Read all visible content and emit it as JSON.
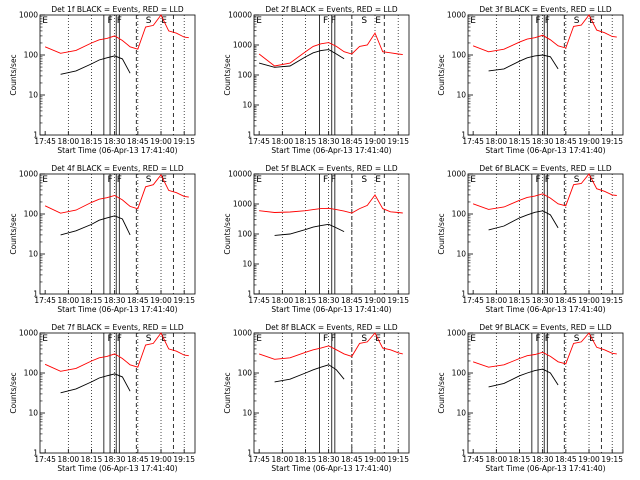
{
  "figure": {
    "ylabel": "Counts/sec",
    "xlabel": "Start Time (06-Apr-13 17:41:40)",
    "x_tick_labels": [
      "17:45",
      "18:00",
      "18:15",
      "18:30",
      "18:45",
      "19:00",
      "19:15"
    ],
    "y_tick_labels": [
      "1",
      "10",
      "100",
      "1000"
    ],
    "colors": {
      "events": "#000000",
      "lld": "#ff0000",
      "axes": "#000000"
    }
  },
  "chart_data": [
    {
      "type": "line",
      "title": "Det 1f BLACK = Events, RED = LLD",
      "xlabel": "Start Time (06-Apr-13 17:41:40)",
      "ylabel": "Counts/sec",
      "xlim": [
        "17:41:40",
        "19:22"
      ],
      "ylim": [
        1,
        1000
      ],
      "yscale": "log",
      "x": [
        "17:45",
        "17:55",
        "18:05",
        "18:15",
        "18:20",
        "18:25",
        "18:30",
        "18:35",
        "18:40",
        "18:45",
        "18:50",
        "18:55",
        "19:00",
        "19:05",
        "19:10",
        "19:15",
        "19:18"
      ],
      "series": [
        {
          "name": "Events",
          "values": [
            null,
            33,
            40,
            60,
            75,
            85,
            95,
            80,
            35,
            null,
            null,
            null,
            null,
            null,
            null,
            null,
            null
          ]
        },
        {
          "name": "LLD",
          "values": [
            160,
            110,
            130,
            200,
            240,
            260,
            300,
            230,
            160,
            140,
            500,
            550,
            1000,
            400,
            350,
            280,
            270
          ]
        }
      ],
      "vlines_solid": [
        "18:23",
        "18:27",
        "18:31",
        "18:33"
      ],
      "vlines_dashed": [
        "18:44",
        "19:08"
      ],
      "vlines_dotted": [
        "18:00",
        "18:15",
        "18:30",
        "18:45",
        "19:00",
        "19:15"
      ],
      "annotations": [
        {
          "text": "E",
          "x": "17:45"
        },
        {
          "text": "F",
          "x": "18:27"
        },
        {
          "text": "F",
          "x": "18:33"
        },
        {
          "text": "S",
          "x": "18:52"
        },
        {
          "text": "E",
          "x": "19:02"
        }
      ]
    },
    {
      "type": "line",
      "title": "Det 2f BLACK = Events, RED = LLD",
      "xlabel": "Start Time (06-Apr-13 17:41:40)",
      "ylabel": "Counts/sec",
      "xlim": [
        "17:41:40",
        "19:22"
      ],
      "ylim": [
        1,
        10000
      ],
      "yscale": "log",
      "x": [
        "17:45",
        "17:55",
        "18:05",
        "18:15",
        "18:20",
        "18:25",
        "18:30",
        "18:35",
        "18:40",
        "18:45",
        "18:50",
        "18:55",
        "19:00",
        "19:05",
        "19:10",
        "19:15",
        "19:18"
      ],
      "series": [
        {
          "name": "Events",
          "values": [
            250,
            180,
            200,
            400,
            550,
            650,
            700,
            500,
            350,
            null,
            null,
            null,
            null,
            null,
            null,
            null,
            null
          ]
        },
        {
          "name": "LLD",
          "values": [
            500,
            200,
            250,
            600,
            900,
            1100,
            1200,
            900,
            600,
            500,
            900,
            1000,
            2500,
            600,
            550,
            500,
            480
          ]
        }
      ],
      "vlines_solid": [
        "18:24",
        "18:32",
        "18:34"
      ],
      "vlines_dashed": [
        "18:45",
        "19:06"
      ],
      "vlines_dotted": [
        "18:00",
        "18:15",
        "18:30",
        "18:45",
        "19:00",
        "19:15"
      ],
      "annotations": [
        {
          "text": "E",
          "x": "17:45"
        },
        {
          "text": "F",
          "x": "18:28"
        },
        {
          "text": "F",
          "x": "18:33"
        },
        {
          "text": "S",
          "x": "18:53"
        },
        {
          "text": "E",
          "x": "19:02"
        }
      ]
    },
    {
      "type": "line",
      "title": "Det 3f BLACK = Events, RED = LLD",
      "xlabel": "Start Time (06-Apr-13 17:41:40)",
      "ylabel": "Counts/sec",
      "xlim": [
        "17:41:40",
        "19:22"
      ],
      "ylim": [
        1,
        1000
      ],
      "yscale": "log",
      "x": [
        "17:45",
        "17:55",
        "18:05",
        "18:15",
        "18:20",
        "18:25",
        "18:30",
        "18:35",
        "18:40",
        "18:45",
        "18:50",
        "18:55",
        "19:00",
        "19:05",
        "19:10",
        "19:15",
        "19:18"
      ],
      "series": [
        {
          "name": "Events",
          "values": [
            null,
            40,
            45,
            70,
            85,
            95,
            100,
            90,
            45,
            null,
            null,
            null,
            null,
            null,
            null,
            null,
            null
          ]
        },
        {
          "name": "LLD",
          "values": [
            170,
            120,
            140,
            210,
            250,
            270,
            310,
            240,
            170,
            150,
            520,
            560,
            1000,
            420,
            360,
            290,
            280
          ]
        }
      ],
      "vlines_solid": [
        "18:23",
        "18:27",
        "18:31",
        "18:33"
      ],
      "vlines_dashed": [
        "18:44",
        "19:08"
      ],
      "vlines_dotted": [
        "18:00",
        "18:15",
        "18:30",
        "18:45",
        "19:00",
        "19:15"
      ],
      "annotations": [
        {
          "text": "E",
          "x": "17:45"
        },
        {
          "text": "F",
          "x": "18:27"
        },
        {
          "text": "F",
          "x": "18:33"
        },
        {
          "text": "S",
          "x": "18:52"
        },
        {
          "text": "E",
          "x": "19:02"
        }
      ]
    },
    {
      "type": "line",
      "title": "Det 4f BLACK = Events, RED = LLD",
      "xlabel": "Start Time (06-Apr-13 17:41:40)",
      "ylabel": "Counts/sec",
      "xlim": [
        "17:41:40",
        "19:22"
      ],
      "ylim": [
        1,
        1000
      ],
      "yscale": "log",
      "x": [
        "17:45",
        "17:55",
        "18:05",
        "18:15",
        "18:20",
        "18:25",
        "18:30",
        "18:35",
        "18:40",
        "18:45",
        "18:50",
        "18:55",
        "19:00",
        "19:05",
        "19:10",
        "19:15",
        "19:18"
      ],
      "series": [
        {
          "name": "Events",
          "values": [
            null,
            30,
            38,
            55,
            70,
            80,
            90,
            75,
            30,
            null,
            null,
            null,
            null,
            null,
            null,
            null,
            null
          ]
        },
        {
          "name": "LLD",
          "values": [
            160,
            105,
            125,
            195,
            235,
            255,
            290,
            225,
            155,
            135,
            480,
            540,
            950,
            390,
            340,
            275,
            265
          ]
        }
      ],
      "vlines_solid": [
        "18:23",
        "18:27",
        "18:31",
        "18:33"
      ],
      "vlines_dashed": [
        "18:44",
        "19:08"
      ],
      "vlines_dotted": [
        "18:00",
        "18:15",
        "18:30",
        "18:45",
        "19:00",
        "19:15"
      ],
      "annotations": [
        {
          "text": "E",
          "x": "17:45"
        },
        {
          "text": "F",
          "x": "18:27"
        },
        {
          "text": "F",
          "x": "18:33"
        },
        {
          "text": "S",
          "x": "18:52"
        },
        {
          "text": "E",
          "x": "19:02"
        }
      ]
    },
    {
      "type": "line",
      "title": "Det 5f BLACK = Events, RED = LLD",
      "xlabel": "Start Time (06-Apr-13 17:41:40)",
      "ylabel": "Counts/sec",
      "xlim": [
        "17:41:40",
        "19:22"
      ],
      "ylim": [
        1,
        10000
      ],
      "yscale": "log",
      "x": [
        "17:45",
        "17:55",
        "18:05",
        "18:15",
        "18:20",
        "18:25",
        "18:30",
        "18:35",
        "18:40",
        "18:45",
        "18:50",
        "18:55",
        "19:00",
        "19:05",
        "19:10",
        "19:15",
        "19:18"
      ],
      "series": [
        {
          "name": "Events",
          "values": [
            null,
            90,
            100,
            140,
            170,
            190,
            210,
            160,
            120,
            null,
            null,
            null,
            null,
            null,
            null,
            null,
            null
          ]
        },
        {
          "name": "LLD",
          "values": [
            600,
            520,
            540,
            600,
            650,
            700,
            720,
            650,
            580,
            500,
            700,
            900,
            2000,
            700,
            550,
            520,
            500
          ]
        }
      ],
      "vlines_solid": [
        "18:24",
        "18:32",
        "18:34"
      ],
      "vlines_dashed": [
        "18:45",
        "19:06"
      ],
      "vlines_dotted": [
        "18:00",
        "18:15",
        "18:30",
        "18:45",
        "19:00",
        "19:15"
      ],
      "annotations": [
        {
          "text": "E",
          "x": "17:45"
        },
        {
          "text": "F",
          "x": "18:28"
        },
        {
          "text": "F",
          "x": "18:33"
        },
        {
          "text": "S",
          "x": "18:53"
        },
        {
          "text": "E",
          "x": "19:02"
        }
      ]
    },
    {
      "type": "line",
      "title": "Det 6f BLACK = Events, RED = LLD",
      "xlabel": "Start Time (06-Apr-13 17:41:40)",
      "ylabel": "Counts/sec",
      "xlim": [
        "17:41:40",
        "19:22"
      ],
      "ylim": [
        1,
        1000
      ],
      "yscale": "log",
      "x": [
        "17:45",
        "17:55",
        "18:05",
        "18:15",
        "18:20",
        "18:25",
        "18:30",
        "18:35",
        "18:40",
        "18:45",
        "18:50",
        "18:55",
        "19:00",
        "19:05",
        "19:10",
        "19:15",
        "19:18"
      ],
      "series": [
        {
          "name": "Events",
          "values": [
            null,
            40,
            50,
            80,
            95,
            110,
            120,
            95,
            45,
            null,
            null,
            null,
            null,
            null,
            null,
            null,
            null
          ]
        },
        {
          "name": "LLD",
          "values": [
            180,
            130,
            150,
            220,
            260,
            280,
            320,
            250,
            180,
            160,
            540,
            580,
            1000,
            430,
            370,
            300,
            290
          ]
        }
      ],
      "vlines_solid": [
        "18:23",
        "18:27",
        "18:31",
        "18:33"
      ],
      "vlines_dashed": [
        "18:44",
        "19:08"
      ],
      "vlines_dotted": [
        "18:00",
        "18:15",
        "18:30",
        "18:45",
        "19:00",
        "19:15"
      ],
      "annotations": [
        {
          "text": "E",
          "x": "17:45"
        },
        {
          "text": "F",
          "x": "18:27"
        },
        {
          "text": "F",
          "x": "18:33"
        },
        {
          "text": "S",
          "x": "18:52"
        },
        {
          "text": "E",
          "x": "19:02"
        }
      ]
    },
    {
      "type": "line",
      "title": "Det 7f BLACK = Events, RED = LLD",
      "xlabel": "Start Time (06-Apr-13 17:41:40)",
      "ylabel": "Counts/sec",
      "xlim": [
        "17:41:40",
        "19:22"
      ],
      "ylim": [
        1,
        1000
      ],
      "yscale": "log",
      "x": [
        "17:45",
        "17:55",
        "18:05",
        "18:15",
        "18:20",
        "18:25",
        "18:30",
        "18:35",
        "18:40",
        "18:45",
        "18:50",
        "18:55",
        "19:00",
        "19:05",
        "19:10",
        "19:15",
        "19:18"
      ],
      "series": [
        {
          "name": "Events",
          "values": [
            null,
            32,
            40,
            60,
            75,
            85,
            95,
            80,
            35,
            null,
            null,
            null,
            null,
            null,
            null,
            null,
            null
          ]
        },
        {
          "name": "LLD",
          "values": [
            165,
            110,
            130,
            200,
            240,
            260,
            300,
            230,
            160,
            140,
            500,
            550,
            1000,
            400,
            350,
            280,
            270
          ]
        }
      ],
      "vlines_solid": [
        "18:23",
        "18:27",
        "18:31",
        "18:33"
      ],
      "vlines_dashed": [
        "18:44",
        "19:08"
      ],
      "vlines_dotted": [
        "18:00",
        "18:15",
        "18:30",
        "18:45",
        "19:00",
        "19:15"
      ],
      "annotations": [
        {
          "text": "E",
          "x": "17:45"
        },
        {
          "text": "F",
          "x": "18:27"
        },
        {
          "text": "F",
          "x": "18:33"
        },
        {
          "text": "S",
          "x": "18:52"
        },
        {
          "text": "E",
          "x": "19:02"
        }
      ]
    },
    {
      "type": "line",
      "title": "Det 8f BLACK = Events, RED = LLD",
      "xlabel": "Start Time (06-Apr-13 17:41:40)",
      "ylabel": "Counts/sec",
      "xlim": [
        "17:41:40",
        "19:22"
      ],
      "ylim": [
        1,
        1000
      ],
      "yscale": "log",
      "x": [
        "17:45",
        "17:55",
        "18:05",
        "18:15",
        "18:20",
        "18:25",
        "18:30",
        "18:35",
        "18:40",
        "18:45",
        "18:50",
        "18:55",
        "19:00",
        "19:05",
        "19:10",
        "19:15",
        "19:18"
      ],
      "series": [
        {
          "name": "Events",
          "values": [
            null,
            60,
            70,
            100,
            120,
            140,
            160,
            120,
            70,
            null,
            null,
            null,
            null,
            null,
            null,
            null,
            null
          ]
        },
        {
          "name": "LLD",
          "values": [
            300,
            220,
            240,
            330,
            380,
            420,
            480,
            380,
            300,
            260,
            550,
            600,
            1000,
            420,
            380,
            320,
            300
          ]
        }
      ],
      "vlines_solid": [
        "18:24",
        "18:32",
        "18:34"
      ],
      "vlines_dashed": [
        "18:45",
        "19:06"
      ],
      "vlines_dotted": [
        "18:00",
        "18:15",
        "18:30",
        "18:45",
        "19:00",
        "19:15"
      ],
      "annotations": [
        {
          "text": "E",
          "x": "17:45"
        },
        {
          "text": "F",
          "x": "18:28"
        },
        {
          "text": "F",
          "x": "18:33"
        },
        {
          "text": "S",
          "x": "18:53"
        },
        {
          "text": "E",
          "x": "19:02"
        }
      ]
    },
    {
      "type": "line",
      "title": "Det 9f BLACK = Events, RED = LLD",
      "xlabel": "Start Time (06-Apr-13 17:41:40)",
      "ylabel": "Counts/sec",
      "xlim": [
        "17:41:40",
        "19:22"
      ],
      "ylim": [
        1,
        1000
      ],
      "yscale": "log",
      "x": [
        "17:45",
        "17:55",
        "18:05",
        "18:15",
        "18:20",
        "18:25",
        "18:30",
        "18:35",
        "18:40",
        "18:45",
        "18:50",
        "18:55",
        "19:00",
        "19:05",
        "19:10",
        "19:15",
        "19:18"
      ],
      "series": [
        {
          "name": "Events",
          "values": [
            null,
            45,
            55,
            85,
            100,
            115,
            125,
            100,
            50,
            null,
            null,
            null,
            null,
            null,
            null,
            null,
            null
          ]
        },
        {
          "name": "LLD",
          "values": [
            190,
            140,
            160,
            230,
            270,
            290,
            330,
            260,
            190,
            170,
            550,
            600,
            1000,
            440,
            380,
            310,
            300
          ]
        }
      ],
      "vlines_solid": [
        "18:23",
        "18:27",
        "18:31",
        "18:33"
      ],
      "vlines_dashed": [
        "18:44",
        "19:08"
      ],
      "vlines_dotted": [
        "18:00",
        "18:15",
        "18:30",
        "18:45",
        "19:00",
        "19:15"
      ],
      "annotations": [
        {
          "text": "E",
          "x": "17:45"
        },
        {
          "text": "F",
          "x": "18:27"
        },
        {
          "text": "F",
          "x": "18:33"
        },
        {
          "text": "S",
          "x": "18:52"
        },
        {
          "text": "E",
          "x": "19:02"
        }
      ]
    }
  ]
}
